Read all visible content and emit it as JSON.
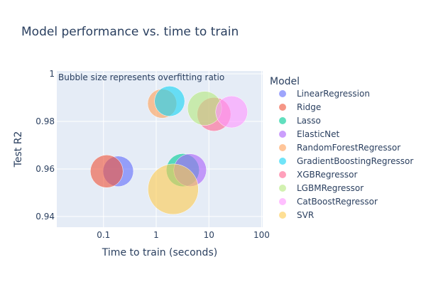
{
  "chart_data": {
    "type": "scatter",
    "subtype": "bubble",
    "title": "Model performance vs. time to train",
    "xlabel": "Time to train (seconds)",
    "ylabel": "Test R2",
    "x_scale": "log",
    "xlim": [
      0.013,
      105
    ],
    "ylim": [
      0.9355,
      1.0012
    ],
    "x_ticks": [
      {
        "value": 0.1,
        "label": "0.1"
      },
      {
        "value": 1,
        "label": "1"
      },
      {
        "value": 10,
        "label": "10"
      },
      {
        "value": 100,
        "label": "100"
      }
    ],
    "y_ticks": [
      {
        "value": 0.94,
        "label": "0.94"
      },
      {
        "value": 0.96,
        "label": "0.96"
      },
      {
        "value": 0.98,
        "label": "0.98"
      },
      {
        "value": 1,
        "label": "1"
      }
    ],
    "grid": true,
    "legend_title": "Model",
    "legend_position": "right",
    "annotation": "Bubble size represents overfitting ratio",
    "series": [
      {
        "name": "LinearRegression",
        "color": "#636efa",
        "x": 0.19,
        "y": 0.959,
        "size": 0.86
      },
      {
        "name": "Ridge",
        "color": "#ef553b",
        "x": 0.115,
        "y": 0.959,
        "size": 0.92
      },
      {
        "name": "Lasso",
        "color": "#00cc96",
        "x": 3.2,
        "y": 0.9595,
        "size": 0.93
      },
      {
        "name": "ElasticNet",
        "color": "#ab63fa",
        "x": 4.4,
        "y": 0.9595,
        "size": 0.92
      },
      {
        "name": "RandomForestRegressor",
        "color": "#ffa15a",
        "x": 1.3,
        "y": 0.9875,
        "size": 0.82
      },
      {
        "name": "GradientBoostingRegressor",
        "color": "#19d3f3",
        "x": 1.8,
        "y": 0.9885,
        "size": 0.85
      },
      {
        "name": "XGBRegressor",
        "color": "#ff6692",
        "x": 12.5,
        "y": 0.983,
        "size": 0.95
      },
      {
        "name": "LGBMRegressor",
        "color": "#b6e880",
        "x": 8.3,
        "y": 0.9855,
        "size": 0.96
      },
      {
        "name": "CatBoostRegressor",
        "color": "#ff97ff",
        "x": 27,
        "y": 0.984,
        "size": 0.9
      },
      {
        "name": "SVR",
        "color": "#fecb52",
        "x": 2.1,
        "y": 0.9515,
        "size": 1.42
      }
    ]
  }
}
